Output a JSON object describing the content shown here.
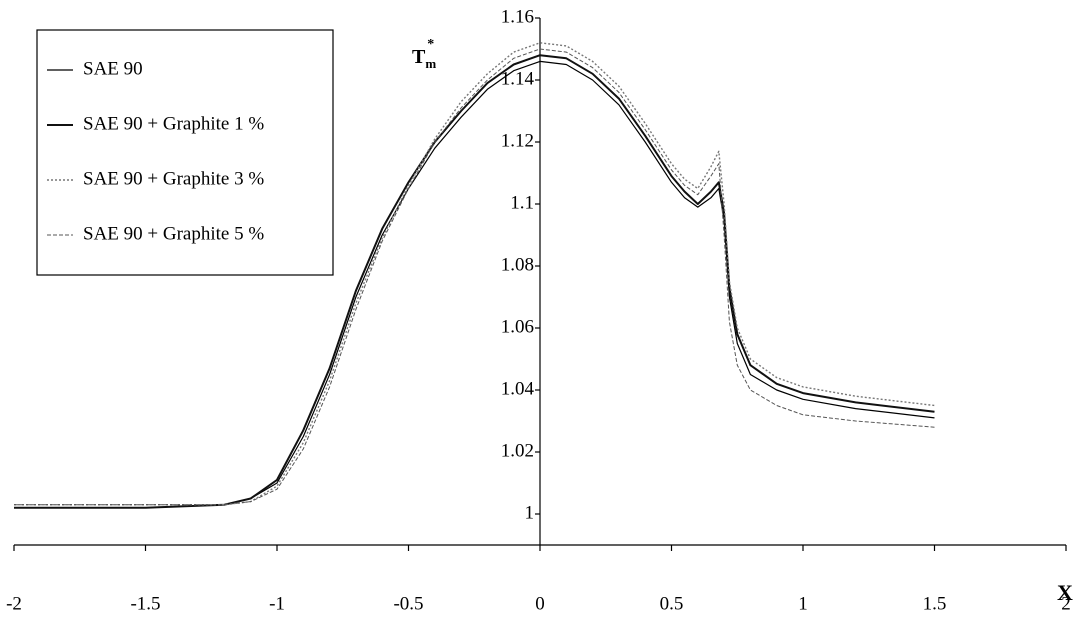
{
  "chart_data": {
    "type": "line",
    "xlabel": "X",
    "ylabel": {
      "base": "T",
      "sub": "m",
      "sup": "*"
    },
    "xlim": [
      -2,
      2
    ],
    "ylim": [
      0.99,
      1.16
    ],
    "xticks": [
      -2,
      -1.5,
      -1,
      -0.5,
      0,
      0.5,
      1,
      1.5,
      2
    ],
    "yticks": [
      1,
      1.02,
      1.04,
      1.06,
      1.08,
      1.1,
      1.12,
      1.14,
      1.16
    ],
    "legend": "upper left",
    "x": [
      -2,
      -1.5,
      -1.2,
      -1.1,
      -1,
      -0.9,
      -0.8,
      -0.7,
      -0.6,
      -0.5,
      -0.4,
      -0.3,
      -0.2,
      -0.1,
      0,
      0.1,
      0.2,
      0.3,
      0.4,
      0.5,
      0.55,
      0.6,
      0.65,
      0.68,
      0.7,
      0.72,
      0.75,
      0.8,
      0.9,
      1,
      1.2,
      1.5
    ],
    "series": [
      {
        "name": "SAE 90",
        "color": "#000000",
        "width": 1.2,
        "dash": "",
        "values": [
          1.002,
          1.002,
          1.003,
          1.005,
          1.01,
          1.025,
          1.045,
          1.07,
          1.09,
          1.105,
          1.118,
          1.128,
          1.137,
          1.143,
          1.146,
          1.145,
          1.14,
          1.132,
          1.12,
          1.107,
          1.102,
          1.099,
          1.102,
          1.105,
          1.095,
          1.07,
          1.055,
          1.045,
          1.04,
          1.037,
          1.034,
          1.031
        ]
      },
      {
        "name": "SAE 90 + Graphite 1 %",
        "color": "#111111",
        "width": 2,
        "dash": "",
        "values": [
          1.002,
          1.002,
          1.003,
          1.005,
          1.011,
          1.027,
          1.047,
          1.072,
          1.092,
          1.107,
          1.12,
          1.13,
          1.139,
          1.145,
          1.148,
          1.147,
          1.142,
          1.134,
          1.122,
          1.109,
          1.104,
          1.1,
          1.104,
          1.107,
          1.097,
          1.073,
          1.058,
          1.048,
          1.042,
          1.039,
          1.036,
          1.033
        ]
      },
      {
        "name": "SAE 90 + Graphite 3 %",
        "color": "#777777",
        "width": 1.4,
        "dash": "2 2",
        "values": [
          1.003,
          1.003,
          1.003,
          1.004,
          1.009,
          1.023,
          1.043,
          1.068,
          1.089,
          1.106,
          1.121,
          1.133,
          1.142,
          1.149,
          1.152,
          1.151,
          1.146,
          1.138,
          1.126,
          1.113,
          1.108,
          1.105,
          1.112,
          1.117,
          1.1,
          1.075,
          1.06,
          1.05,
          1.044,
          1.041,
          1.038,
          1.035
        ]
      },
      {
        "name": "SAE 90 + Graphite 5 %",
        "color": "#555555",
        "width": 1,
        "dash": "4 2",
        "values": [
          1.003,
          1.003,
          1.003,
          1.004,
          1.008,
          1.021,
          1.041,
          1.066,
          1.088,
          1.105,
          1.12,
          1.131,
          1.14,
          1.147,
          1.15,
          1.149,
          1.144,
          1.136,
          1.124,
          1.111,
          1.106,
          1.103,
          1.109,
          1.113,
          1.09,
          1.062,
          1.048,
          1.04,
          1.035,
          1.032,
          1.03,
          1.028
        ]
      }
    ]
  }
}
